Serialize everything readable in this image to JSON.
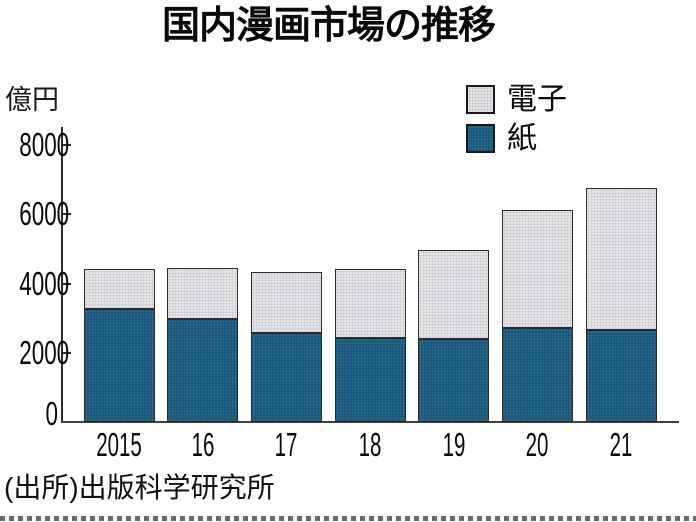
{
  "title": "国内漫画市場の推移",
  "y_axis": {
    "unit_label": "億円",
    "tick_labels": [
      "0",
      "2000",
      "4000",
      "6000",
      "8000"
    ]
  },
  "x_axis": {
    "tick_labels": [
      "2015",
      "16",
      "17",
      "18",
      "19",
      "20",
      "21"
    ]
  },
  "legend": {
    "items": [
      {
        "label": "電子",
        "color": "#e8e8ea"
      },
      {
        "label": "紙",
        "color": "#14567a"
      }
    ]
  },
  "source": "(出所)出版科学研究所",
  "chart_data": {
    "type": "bar",
    "stacked": true,
    "title": "国内漫画市場の推移",
    "categories": [
      "2015",
      "16",
      "17",
      "18",
      "19",
      "20",
      "21"
    ],
    "series": [
      {
        "name": "紙",
        "color": "#14567a",
        "values": [
          3268,
          2963,
          2583,
          2412,
          2387,
          2706,
          2645
        ]
      },
      {
        "name": "電子",
        "color": "#e8e8ea",
        "values": [
          1149,
          1491,
          1747,
          2002,
          2593,
          3420,
          4114
        ]
      }
    ],
    "totals": [
      4417,
      4454,
      4330,
      4414,
      4980,
      6126,
      6759
    ],
    "xlabel": "",
    "ylabel": "億円",
    "ylim": [
      0,
      8000
    ],
    "y_ticks": [
      0,
      2000,
      4000,
      6000,
      8000
    ],
    "grid": false,
    "legend_position": "top-right",
    "source": "(出所)出版科学研究所"
  }
}
